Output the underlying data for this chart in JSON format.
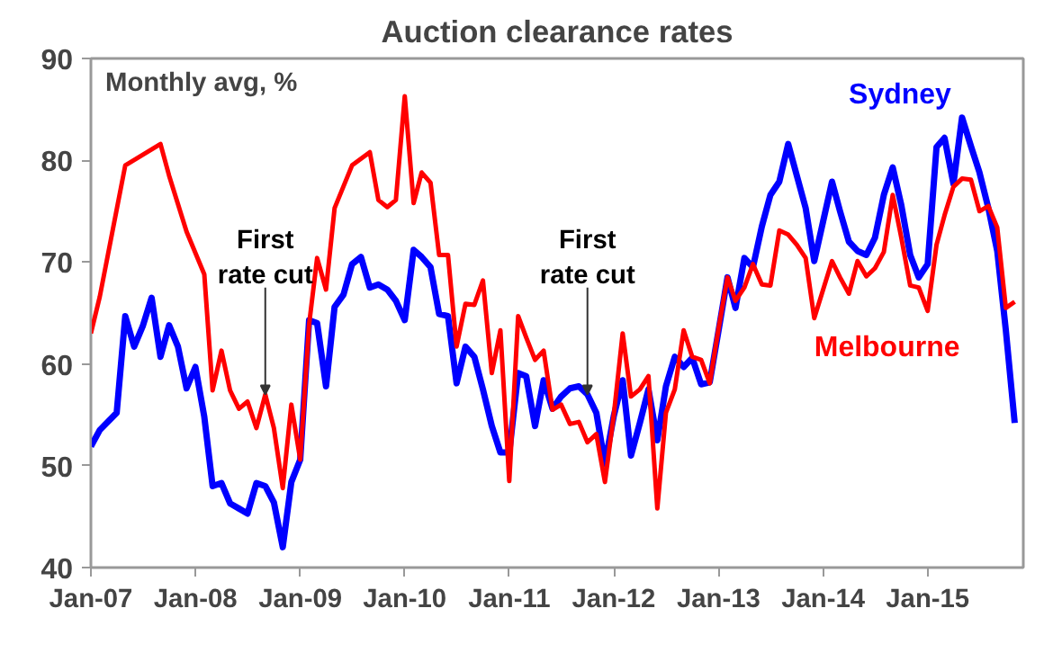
{
  "chart_data": {
    "type": "line",
    "title": "Auction clearance rates",
    "subtitle": "Monthly avg, %",
    "xlim": [
      "2007-01",
      "2015-12"
    ],
    "ylim": [
      40,
      90
    ],
    "xticks": [
      {
        "value": "2007-01",
        "label": "Jan-07"
      },
      {
        "value": "2008-01",
        "label": "Jan-08"
      },
      {
        "value": "2009-01",
        "label": "Jan-09"
      },
      {
        "value": "2010-01",
        "label": "Jan-10"
      },
      {
        "value": "2011-01",
        "label": "Jan-11"
      },
      {
        "value": "2012-01",
        "label": "Jan-12"
      },
      {
        "value": "2013-01",
        "label": "Jan-13"
      },
      {
        "value": "2014-01",
        "label": "Jan-14"
      },
      {
        "value": "2015-01",
        "label": "Jan-15"
      }
    ],
    "yticks": [
      40,
      50,
      60,
      70,
      80,
      90
    ],
    "grid": false,
    "legend": false,
    "line_style": "solid",
    "marker": "none",
    "annotations": [
      {
        "text": "First\nrate cut",
        "x": "2008-09",
        "y": 57.0
      },
      {
        "text": "First\nrate cut",
        "x": "2011-10",
        "y": 57.0
      }
    ],
    "series": [
      {
        "name": "Sydney",
        "color": "#0000ff",
        "x": [
          "2007-01",
          "2007-02",
          "2007-04",
          "2007-05",
          "2007-06",
          "2007-07",
          "2007-08",
          "2007-09",
          "2007-10",
          "2007-11",
          "2007-12",
          "2008-01",
          "2008-02",
          "2008-03",
          "2008-04",
          "2008-05",
          "2008-06",
          "2008-07",
          "2008-08",
          "2008-09",
          "2008-10",
          "2008-11",
          "2008-12",
          "2009-01",
          "2009-02",
          "2009-03",
          "2009-04",
          "2009-05",
          "2009-06",
          "2009-07",
          "2009-08",
          "2009-09",
          "2009-10",
          "2009-11",
          "2009-12",
          "2010-01",
          "2010-02",
          "2010-03",
          "2010-04",
          "2010-05",
          "2010-06",
          "2010-07",
          "2010-08",
          "2010-09",
          "2010-10",
          "2010-11",
          "2010-12",
          "2011-01",
          "2011-02",
          "2011-03",
          "2011-04",
          "2011-05",
          "2011-06",
          "2011-07",
          "2011-08",
          "2011-09",
          "2011-10",
          "2011-11",
          "2011-12",
          "2012-01",
          "2012-02",
          "2012-03",
          "2012-04",
          "2012-05",
          "2012-06",
          "2012-07",
          "2012-08",
          "2012-09",
          "2012-10",
          "2012-11",
          "2012-12",
          "2013-01",
          "2013-02",
          "2013-03",
          "2013-04",
          "2013-05",
          "2013-06",
          "2013-07",
          "2013-08",
          "2013-09",
          "2013-10",
          "2013-11",
          "2013-12",
          "2014-01",
          "2014-02",
          "2014-03",
          "2014-04",
          "2014-05",
          "2014-06",
          "2014-07",
          "2014-08",
          "2014-09",
          "2014-10",
          "2014-11",
          "2014-12",
          "2015-01",
          "2015-02",
          "2015-03",
          "2015-04",
          "2015-05",
          "2015-06",
          "2015-07",
          "2015-08",
          "2015-09",
          "2015-10",
          "2015-11"
        ],
        "values": [
          51.9,
          53.5,
          55.2,
          64.7,
          61.7,
          63.7,
          66.5,
          60.7,
          63.8,
          61.7,
          57.6,
          59.7,
          54.8,
          48.0,
          48.3,
          46.3,
          45.8,
          45.3,
          48.3,
          48.0,
          46.4,
          42.0,
          48.4,
          50.6,
          64.3,
          64.0,
          57.8,
          65.6,
          66.8,
          69.8,
          70.5,
          67.5,
          67.8,
          67.3,
          66.2,
          64.3,
          71.2,
          70.5,
          69.5,
          64.9,
          64.7,
          58.1,
          61.7,
          60.7,
          57.5,
          53.9,
          51.3,
          51.3,
          59.1,
          58.8,
          53.9,
          58.4,
          55.6,
          56.8,
          57.6,
          57.8,
          57.0,
          55.2,
          50.2,
          54.9,
          58.4,
          51.0,
          54.2,
          57.5,
          52.5,
          57.8,
          60.7,
          59.7,
          60.6,
          58.0,
          58.2,
          63.3,
          68.5,
          65.5,
          70.4,
          69.5,
          73.5,
          76.6,
          77.9,
          81.6,
          78.5,
          75.3,
          70.1,
          74.0,
          77.9,
          75.0,
          72.0,
          71.1,
          70.7,
          72.4,
          76.6,
          79.3,
          75.6,
          70.7,
          68.5,
          69.8,
          81.3,
          82.2,
          77.7,
          84.2,
          81.4,
          78.8,
          75.3,
          71.1,
          63.3,
          54.2
        ]
      },
      {
        "name": "Melbourne",
        "color": "#ff0000",
        "x": [
          "2007-01",
          "2007-02",
          "2007-05",
          "2007-09",
          "2007-10",
          "2007-12",
          "2008-02",
          "2008-03",
          "2008-04",
          "2008-05",
          "2008-06",
          "2008-07",
          "2008-08",
          "2008-09",
          "2008-10",
          "2008-11",
          "2008-12",
          "2009-01",
          "2009-02",
          "2009-03",
          "2009-04",
          "2009-05",
          "2009-07",
          "2009-09",
          "2009-10",
          "2009-11",
          "2009-12",
          "2010-01",
          "2010-02",
          "2010-03",
          "2010-04",
          "2010-05",
          "2010-06",
          "2010-07",
          "2010-08",
          "2010-09",
          "2010-10",
          "2010-11",
          "2010-12",
          "2011-01",
          "2011-02",
          "2011-03",
          "2011-04",
          "2011-05",
          "2011-06",
          "2011-07",
          "2011-08",
          "2011-09",
          "2011-10",
          "2011-11",
          "2011-12",
          "2012-01",
          "2012-02",
          "2012-03",
          "2012-04",
          "2012-05",
          "2012-06",
          "2012-07",
          "2012-08",
          "2012-09",
          "2012-10",
          "2012-11",
          "2012-12",
          "2013-01",
          "2013-02",
          "2013-03",
          "2013-04",
          "2013-05",
          "2013-06",
          "2013-07",
          "2013-08",
          "2013-09",
          "2013-10",
          "2013-11",
          "2013-12",
          "2014-01",
          "2014-02",
          "2014-03",
          "2014-04",
          "2014-05",
          "2014-06",
          "2014-07",
          "2014-08",
          "2014-09",
          "2014-10",
          "2014-11",
          "2014-12",
          "2015-01",
          "2015-02",
          "2015-03",
          "2015-04",
          "2015-05",
          "2015-06",
          "2015-07",
          "2015-08",
          "2015-09",
          "2015-10",
          "2015-11"
        ],
        "values": [
          63.0,
          66.6,
          79.5,
          81.6,
          78.5,
          73.0,
          68.8,
          57.4,
          61.3,
          57.4,
          55.6,
          56.3,
          53.7,
          57.0,
          53.7,
          47.8,
          56.0,
          50.6,
          63.9,
          70.4,
          67.3,
          75.3,
          79.5,
          80.8,
          76.1,
          75.4,
          76.1,
          86.3,
          75.8,
          78.8,
          77.8,
          70.7,
          70.7,
          61.7,
          65.9,
          65.8,
          68.2,
          59.1,
          63.3,
          48.5,
          64.7,
          62.6,
          60.4,
          61.3,
          55.5,
          56.0,
          54.1,
          54.3,
          52.3,
          53.1,
          48.4,
          55.0,
          63.0,
          56.8,
          57.5,
          58.8,
          45.8,
          55.2,
          57.5,
          63.3,
          60.7,
          60.4,
          58.1,
          63.5,
          68.5,
          66.2,
          67.5,
          69.8,
          67.8,
          67.7,
          73.1,
          72.7,
          71.7,
          70.4,
          64.5,
          67.3,
          70.1,
          68.5,
          66.9,
          70.1,
          68.6,
          69.4,
          71.0,
          76.6,
          72.4,
          67.7,
          67.5,
          65.2,
          71.7,
          74.6,
          77.4,
          78.2,
          78.1,
          75.0,
          75.5,
          73.4,
          65.5,
          66.1
        ]
      }
    ]
  }
}
